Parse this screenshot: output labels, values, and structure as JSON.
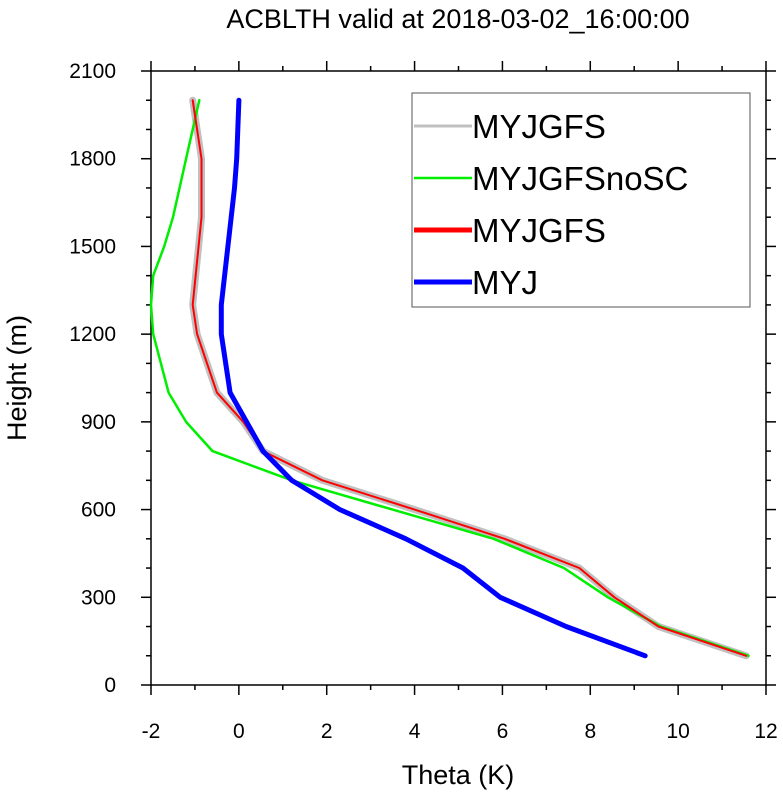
{
  "chart_data": {
    "type": "line",
    "title": "ACBLTH valid at 2018-03-02_16:00:00",
    "xlabel": "Theta (K)",
    "ylabel": "Height (m)",
    "xlim": [
      -2,
      12
    ],
    "ylim": [
      0,
      2100
    ],
    "xticks": [
      "-2",
      "0",
      "2",
      "4",
      "6",
      "8",
      "10",
      "12"
    ],
    "yticks": [
      "0",
      "300",
      "600",
      "900",
      "1200",
      "1500",
      "1800",
      "2100"
    ],
    "grid": false,
    "legend_position": "top-right",
    "series": [
      {
        "name": "MYJGFS",
        "color": "#c0c0c0",
        "style": "outline-under",
        "x": [
          11.55,
          9.55,
          8.55,
          7.75,
          6.05,
          4.0,
          1.9,
          0.55,
          0.1,
          -0.5,
          -0.95,
          -1.05,
          -0.85,
          -0.85,
          -0.95,
          -1.05
        ],
        "y": [
          100,
          200,
          300,
          400,
          500,
          600,
          700,
          800,
          900,
          1000,
          1200,
          1300,
          1600,
          1800,
          1900,
          2000
        ]
      },
      {
        "name": "MYJGFSnoSC",
        "color": "#00ee00",
        "style": "thin",
        "x": [
          11.6,
          9.6,
          8.4,
          7.4,
          5.8,
          3.5,
          1.2,
          -0.6,
          -1.2,
          -1.6,
          -1.95,
          -2.0,
          -1.95,
          -1.7,
          -1.5,
          -1.2,
          -0.9
        ],
        "y": [
          100,
          200,
          300,
          400,
          500,
          600,
          700,
          800,
          900,
          1000,
          1200,
          1300,
          1400,
          1500,
          1600,
          1800,
          2000
        ]
      },
      {
        "name": "MYJGFS",
        "color": "#ff0000",
        "style": "thin-over",
        "x": [
          11.55,
          9.55,
          8.55,
          7.75,
          6.05,
          4.0,
          1.9,
          0.55,
          0.1,
          -0.5,
          -0.95,
          -1.05,
          -0.85,
          -0.85,
          -0.95,
          -1.05
        ],
        "y": [
          100,
          200,
          300,
          400,
          500,
          600,
          700,
          800,
          900,
          1000,
          1200,
          1300,
          1600,
          1800,
          1900,
          2000
        ]
      },
      {
        "name": "MYJ",
        "color": "#0000ff",
        "style": "thick",
        "x": [
          9.25,
          7.45,
          5.95,
          5.1,
          3.8,
          2.3,
          1.2,
          0.55,
          -0.2,
          -0.4,
          -0.4,
          -0.25,
          -0.1,
          -0.05,
          0.0
        ],
        "y": [
          100,
          200,
          300,
          400,
          500,
          600,
          700,
          800,
          1000,
          1200,
          1300,
          1500,
          1700,
          1800,
          2000
        ]
      }
    ]
  }
}
